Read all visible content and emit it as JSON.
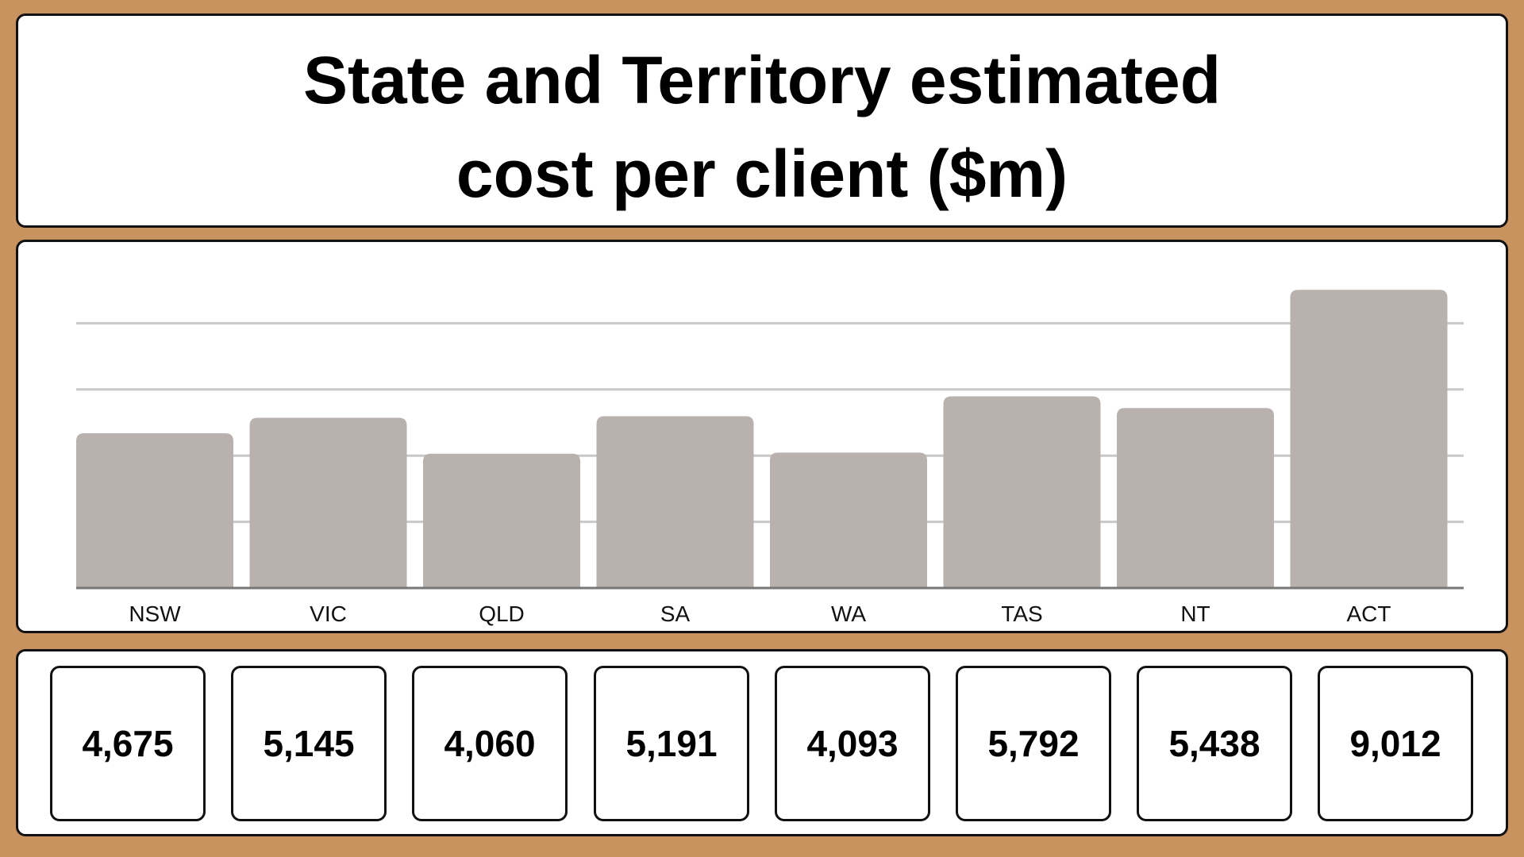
{
  "header": {
    "title_line1": "State and Territory estimated",
    "title_line2": "cost per client ($m)"
  },
  "colors": {
    "background": "#c9935f",
    "bar": "#b8b1ae",
    "grid": "#c8c8c8",
    "axis": "#777777"
  },
  "chart_data": {
    "type": "bar",
    "title": "State and Territory estimated cost per client ($m)",
    "categories": [
      "NSW",
      "VIC",
      "QLD",
      "SA",
      "WA",
      "TAS",
      "NT",
      "ACT"
    ],
    "values": [
      4675,
      5145,
      4060,
      5191,
      4093,
      5792,
      5438,
      9012
    ],
    "ylim": [
      0,
      10000
    ],
    "grid": true,
    "legend": "none"
  },
  "value_cards": [
    "4,675",
    "5,145",
    "4,060",
    "5,191",
    "4,093",
    "5,792",
    "5,438",
    "9,012"
  ]
}
